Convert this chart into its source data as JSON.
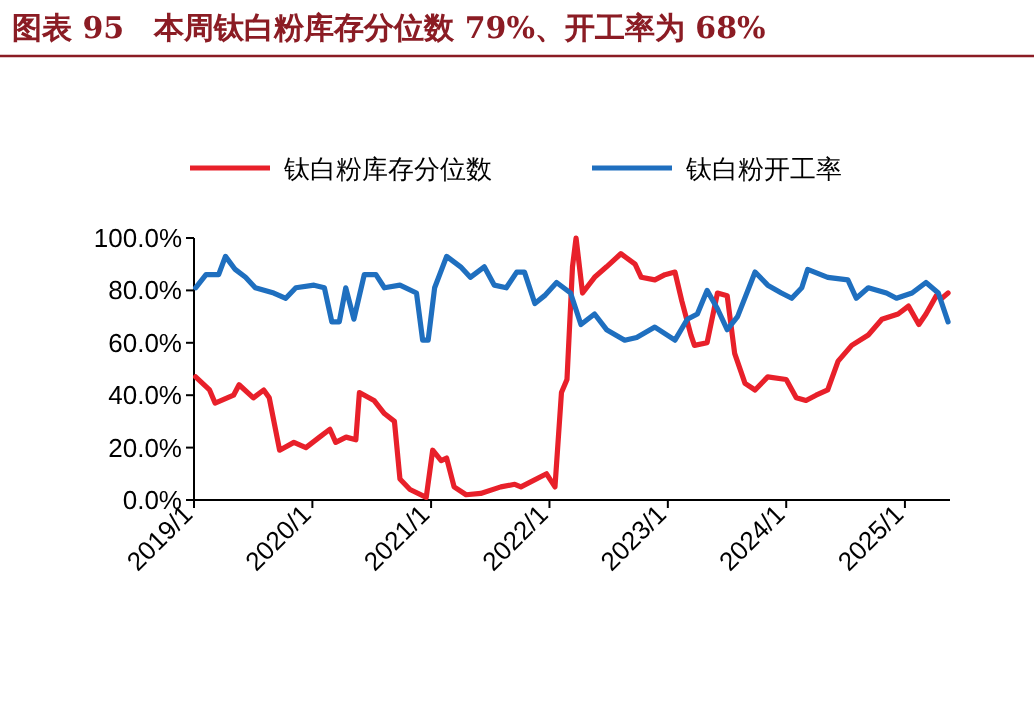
{
  "chart_data": {
    "type": "line",
    "title": "图表 95　本周钛白粉库存分位数 79%、开工率为 68%",
    "legend": "top",
    "grid": false,
    "line_style": "solid",
    "xlim": [
      "2019-01-01",
      "2025-05-20"
    ],
    "xticks": [
      {
        "value": "2019-01-01",
        "label": "2019/1"
      },
      {
        "value": "2020-01-01",
        "label": "2020/1"
      },
      {
        "value": "2021-01-01",
        "label": "2021/1"
      },
      {
        "value": "2022-01-01",
        "label": "2022/1"
      },
      {
        "value": "2023-01-01",
        "label": "2023/1"
      },
      {
        "value": "2024-01-01",
        "label": "2024/1"
      },
      {
        "value": "2025-01-01",
        "label": "2025/1"
      }
    ],
    "ylim": [
      0,
      100
    ],
    "yticks": [
      {
        "value": 0,
        "label": "0.0%"
      },
      {
        "value": 20,
        "label": "20.0%"
      },
      {
        "value": 40,
        "label": "40.0%"
      },
      {
        "value": 60,
        "label": "60.0%"
      },
      {
        "value": 80,
        "label": "80.0%"
      },
      {
        "value": 100,
        "label": "100.0%"
      }
    ],
    "series": [
      {
        "name": "钛白粉库存分位数",
        "color": "#e8202a",
        "x": [
          "2019-01-06",
          "2019-02-18",
          "2019-03-07",
          "2019-05-03",
          "2019-05-20",
          "2019-07-03",
          "2019-08-04",
          "2019-08-21",
          "2019-09-22",
          "2019-11-05",
          "2019-12-12",
          "2020-01-23",
          "2020-02-24",
          "2020-03-13",
          "2020-04-14",
          "2020-05-14",
          "2020-05-25",
          "2020-07-09",
          "2020-08-10",
          "2020-09-10",
          "2020-09-27",
          "2020-10-28",
          "2020-12-17",
          "2021-01-06",
          "2021-02-01",
          "2021-02-18",
          "2021-03-13",
          "2021-04-19",
          "2021-06-03",
          "2021-08-04",
          "2021-09-16",
          "2021-10-05",
          "2021-12-23",
          "2022-01-18",
          "2022-02-07",
          "2022-02-24",
          "2022-03-13",
          "2022-03-24",
          "2022-04-13",
          "2022-05-20",
          "2022-06-26",
          "2022-08-09",
          "2022-09-22",
          "2022-10-11",
          "2022-11-22",
          "2022-12-23",
          "2023-01-23",
          "2023-02-13",
          "2023-03-13",
          "2023-03-24",
          "2023-05-02",
          "2023-06-03",
          "2023-07-03",
          "2023-07-26",
          "2023-08-27",
          "2023-09-27",
          "2023-11-05",
          "2024-01-01",
          "2024-02-01",
          "2024-03-02",
          "2024-04-02",
          "2024-05-08",
          "2024-06-09",
          "2024-07-21",
          "2024-09-10",
          "2024-10-22",
          "2024-12-11",
          "2025-01-12",
          "2025-02-13",
          "2025-03-07",
          "2025-04-08",
          "2025-04-25",
          "2025-05-14"
        ],
        "values": [
          47,
          42,
          37,
          40,
          44,
          39,
          42,
          39,
          19,
          22,
          20,
          24,
          27,
          22,
          24,
          23,
          41,
          38,
          33,
          30,
          8,
          4,
          1,
          19,
          15,
          16,
          5,
          2,
          2.5,
          5,
          6,
          5,
          10,
          5,
          41,
          46,
          89,
          100,
          79,
          85,
          89,
          94,
          90,
          85,
          84,
          86,
          87,
          76,
          63,
          59,
          60,
          79,
          78,
          56,
          44.5,
          42,
          47,
          46,
          39,
          38,
          40,
          42,
          53,
          59,
          63,
          69,
          71,
          74,
          67,
          71,
          78,
          77,
          79
        ]
      },
      {
        "name": "钛白粉开工率",
        "color": "#1f6fbf",
        "x": [
          "2019-01-06",
          "2019-02-07",
          "2019-03-18",
          "2019-04-08",
          "2019-05-08",
          "2019-06-09",
          "2019-07-09",
          "2019-09-04",
          "2019-10-11",
          "2019-11-11",
          "2020-01-06",
          "2020-02-07",
          "2020-03-01",
          "2020-03-24",
          "2020-04-13",
          "2020-05-08",
          "2020-06-09",
          "2020-07-15",
          "2020-08-10",
          "2020-09-27",
          "2020-11-17",
          "2020-12-06",
          "2020-12-23",
          "2021-01-12",
          "2021-02-18",
          "2021-04-02",
          "2021-05-02",
          "2021-06-14",
          "2021-07-15",
          "2021-08-21",
          "2021-09-22",
          "2021-10-16",
          "2021-11-17",
          "2021-12-17",
          "2022-01-23",
          "2022-03-07",
          "2022-04-08",
          "2022-05-20",
          "2022-06-26",
          "2022-08-21",
          "2022-09-27",
          "2022-11-22",
          "2023-01-23",
          "2023-03-02",
          "2023-04-02",
          "2023-05-02",
          "2023-06-03",
          "2023-07-03",
          "2023-08-04",
          "2023-09-27",
          "2023-11-05",
          "2023-12-17",
          "2024-01-18",
          "2024-02-18",
          "2024-03-07",
          "2024-05-08",
          "2024-07-09",
          "2024-08-04",
          "2024-09-10",
          "2024-11-05",
          "2024-12-06",
          "2025-01-23",
          "2025-03-07",
          "2025-04-14",
          "2025-05-14"
        ],
        "values": [
          81,
          86,
          86,
          93,
          88,
          85,
          81,
          79,
          77,
          81,
          82,
          81,
          68,
          68,
          81,
          69,
          86,
          86,
          81,
          82,
          79,
          61,
          61,
          81,
          93,
          89,
          85,
          89,
          82,
          81,
          87,
          87,
          75,
          78,
          83,
          79,
          67,
          71,
          65,
          61,
          62,
          66,
          61,
          69,
          71,
          80,
          73,
          65,
          70,
          87,
          82,
          79,
          77,
          81,
          88,
          85,
          84,
          77,
          81,
          79,
          77,
          79,
          83,
          79,
          68
        ]
      }
    ]
  }
}
